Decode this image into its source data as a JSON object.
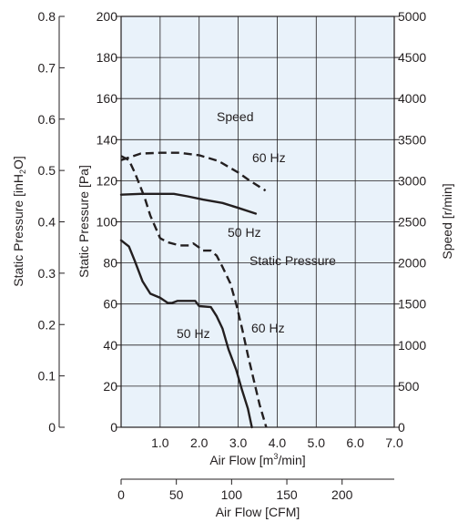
{
  "chart_data": {
    "type": "line",
    "colors": {
      "plot_bg": "#e9f2fa",
      "grid": "#231f20",
      "line": "#231f20"
    },
    "grid": true,
    "axes": {
      "left_pa": {
        "label_text": "Static Pressure [Pa]",
        "range": [
          0,
          200
        ],
        "ticks": [
          "0",
          "20",
          "40",
          "60",
          "80",
          "100",
          "120",
          "140",
          "160",
          "180",
          "200"
        ]
      },
      "left_inh2o": {
        "label_prefix": "Static Pressure [inH",
        "label_sub": "2",
        "label_suffix": "O]",
        "range": [
          0,
          0.8
        ],
        "ticks": [
          "0",
          "0.1",
          "0.2",
          "0.3",
          "0.4",
          "0.5",
          "0.6",
          "0.7",
          "0.8"
        ]
      },
      "right_speed": {
        "label_text": "Speed [r/min]",
        "range": [
          0,
          5000
        ],
        "ticks": [
          "0",
          "500",
          "1000",
          "1500",
          "2000",
          "2500",
          "3000",
          "3500",
          "4000",
          "4500",
          "5000"
        ]
      },
      "bottom_m3": {
        "label_prefix": "Air Flow [m",
        "label_sup": "3",
        "label_suffix": "/min]",
        "range": [
          0,
          7
        ],
        "ticks": [
          "1.0",
          "2.0",
          "3.0",
          "4.0",
          "5.0",
          "6.0",
          "7.0"
        ]
      },
      "bottom_cfm": {
        "label_text": "Air Flow [CFM]",
        "range": [
          0,
          247.2
        ],
        "ticks": [
          "0",
          "50",
          "100",
          "150",
          "200"
        ]
      }
    },
    "annotations": {
      "speed": "Speed",
      "static_pressure": "Static Pressure",
      "hz60_top": "60 Hz",
      "hz50_top": "50 Hz",
      "hz50_bottom": "50 Hz",
      "hz60_bottom": "60 Hz"
    },
    "series": [
      {
        "style": "dashed",
        "axis": "right_speed",
        "points": [
          [
            0,
            3250
          ],
          [
            0.5,
            3330
          ],
          [
            1.0,
            3340
          ],
          [
            1.5,
            3340
          ],
          [
            2.0,
            3310
          ],
          [
            2.5,
            3240
          ],
          [
            3.0,
            3100
          ],
          [
            3.3,
            3000
          ],
          [
            3.7,
            2880
          ]
        ]
      },
      {
        "style": "solid",
        "axis": "right_speed",
        "points": [
          [
            0,
            2830
          ],
          [
            0.5,
            2840
          ],
          [
            1.0,
            2840
          ],
          [
            1.35,
            2840
          ],
          [
            1.7,
            2810
          ],
          [
            2.1,
            2770
          ],
          [
            2.6,
            2730
          ],
          [
            3.0,
            2670
          ],
          [
            3.45,
            2600
          ]
        ]
      },
      {
        "style": "dashed",
        "axis": "left_pa",
        "points": [
          [
            0,
            132
          ],
          [
            0.2,
            130
          ],
          [
            0.35,
            124
          ],
          [
            0.6,
            112
          ],
          [
            0.75,
            103
          ],
          [
            1.0,
            92
          ],
          [
            1.2,
            90
          ],
          [
            1.5,
            88.5
          ],
          [
            1.75,
            88.5
          ],
          [
            1.85,
            89.5
          ],
          [
            2.0,
            87.5
          ],
          [
            2.1,
            86
          ],
          [
            2.3,
            86
          ],
          [
            2.45,
            83.5
          ],
          [
            2.6,
            78
          ],
          [
            2.8,
            70
          ],
          [
            2.95,
            60
          ],
          [
            3.1,
            48
          ],
          [
            3.25,
            35
          ],
          [
            3.4,
            23
          ],
          [
            3.55,
            11
          ],
          [
            3.72,
            0
          ]
        ]
      },
      {
        "style": "solid",
        "axis": "left_pa",
        "points": [
          [
            0,
            91
          ],
          [
            0.2,
            88
          ],
          [
            0.35,
            81
          ],
          [
            0.55,
            71
          ],
          [
            0.75,
            65
          ],
          [
            1.0,
            63
          ],
          [
            1.2,
            60.5
          ],
          [
            1.3,
            60.5
          ],
          [
            1.45,
            61.5
          ],
          [
            1.9,
            61.5
          ],
          [
            2.0,
            59
          ],
          [
            2.3,
            58.5
          ],
          [
            2.45,
            54
          ],
          [
            2.6,
            48
          ],
          [
            2.75,
            38
          ],
          [
            2.95,
            28
          ],
          [
            3.1,
            18
          ],
          [
            3.25,
            9
          ],
          [
            3.35,
            0
          ]
        ]
      }
    ]
  }
}
